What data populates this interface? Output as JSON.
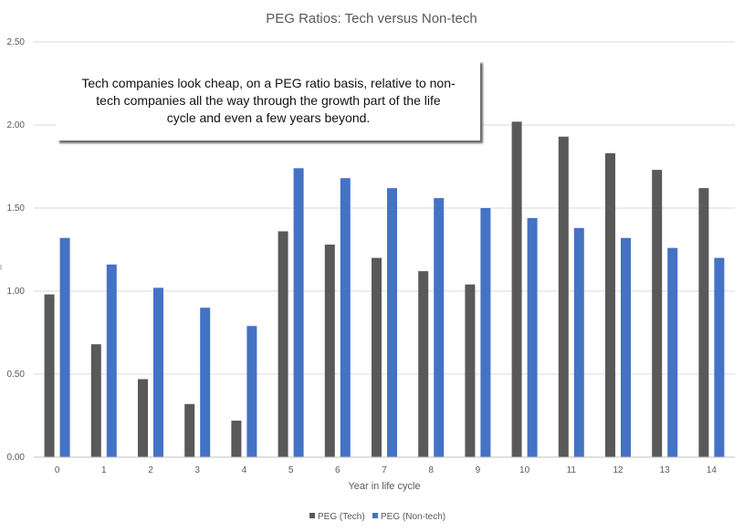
{
  "callout_text": "Tech companies look cheap, on a PEG ratio basis, relative to non-tech companies all the way through the growth part of the life cycle and even a few years beyond.",
  "chart_data": {
    "type": "bar",
    "title": "PEG Ratios: Tech versus Non-tech",
    "xlabel": "Year in life cycle",
    "ylabel": "",
    "ylim": [
      0,
      2.5
    ],
    "yticks": [
      "0.00",
      "0.50",
      "1.00",
      "1.50",
      "2.00",
      "2.50"
    ],
    "categories": [
      "0",
      "1",
      "2",
      "3",
      "4",
      "5",
      "6",
      "7",
      "8",
      "9",
      "10",
      "11",
      "12",
      "13",
      "14"
    ],
    "series": [
      {
        "name": "PEG (Tech)",
        "color": "#595959",
        "values": [
          0.98,
          0.68,
          0.47,
          0.32,
          0.22,
          1.36,
          1.28,
          1.2,
          1.12,
          1.04,
          2.02,
          1.93,
          1.83,
          1.73,
          1.62
        ]
      },
      {
        "name": "PEG (Non-tech)",
        "color": "#4472C4",
        "values": [
          1.32,
          1.16,
          1.02,
          0.9,
          0.79,
          1.74,
          1.68,
          1.62,
          1.56,
          1.5,
          1.44,
          1.38,
          1.32,
          1.26,
          1.2
        ]
      }
    ],
    "grid": true,
    "legend": "bottom"
  }
}
